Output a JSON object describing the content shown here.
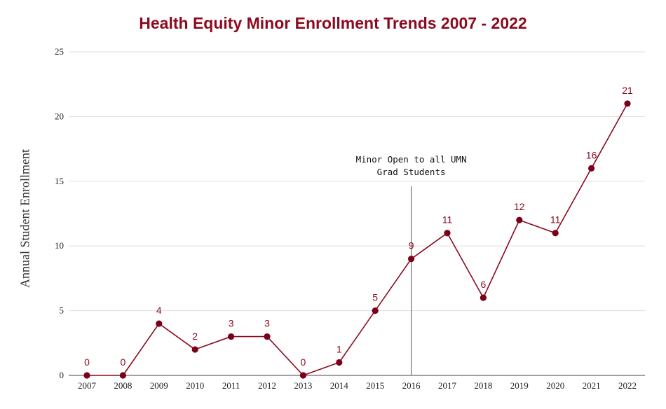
{
  "chart_data": {
    "type": "line",
    "title": "Health Equity Minor Enrollment Trends 2007 - 2022",
    "xlabel": "",
    "ylabel": "Annual Student Enrollment",
    "categories": [
      "2007",
      "2008",
      "2009",
      "2010",
      "2011",
      "2012",
      "2013",
      "2014",
      "2015",
      "2016",
      "2017",
      "2018",
      "2019",
      "2020",
      "2021",
      "2022"
    ],
    "series": [
      {
        "name": "Annual Student Enrollment",
        "values": [
          0,
          0,
          4,
          2,
          3,
          3,
          0,
          1,
          5,
          9,
          11,
          6,
          12,
          11,
          16,
          21
        ]
      }
    ],
    "yticks": [
      "0",
      "5",
      "10",
      "15",
      "20",
      "25"
    ],
    "ylim": [
      0,
      25
    ],
    "grid": true,
    "data_labels": true,
    "annotation": {
      "category": "2016",
      "lines": [
        "Minor Open to all UMN",
        "Grad Students"
      ]
    },
    "colors": {
      "line": "#8b0a1f",
      "marker": "#7a0019",
      "label": "#8b0a1f",
      "title": "#8b0a1f",
      "grid": "#dddddd"
    }
  }
}
